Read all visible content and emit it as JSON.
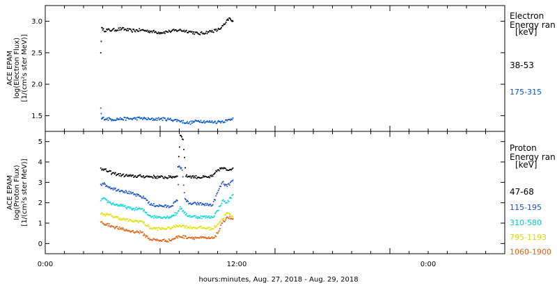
{
  "xaxis": {
    "ticks": [
      "0:00",
      "12:00",
      "0:00"
    ],
    "title": "hours:minutes, Aug. 27, 2018 - Aug. 29, 2018"
  },
  "chart_data": [
    {
      "type": "scatter",
      "panel": "electron",
      "ylabel_lines": [
        "ACE EPAM",
        "log(Electron Flux)",
        "[1/(cm²s ster MeV)]"
      ],
      "ylim": [
        1.25,
        3.25
      ],
      "yticks": [
        "1.5",
        "2.0",
        "2.5",
        "3.0"
      ],
      "xlim_hours": [
        0,
        48
      ],
      "legend_title": [
        "Electron",
        "Energy ran",
        "[keV]"
      ],
      "series": [
        {
          "name": "38-53",
          "color": "#000000",
          "x": [
            5.8,
            5.9,
            6,
            7,
            8,
            9,
            10,
            11,
            12,
            13,
            14,
            15,
            16,
            17,
            18,
            18.4,
            18.8,
            19.2,
            19.5,
            19.6
          ],
          "y": [
            2.5,
            2.9,
            2.86,
            2.86,
            2.88,
            2.85,
            2.86,
            2.84,
            2.82,
            2.84,
            2.86,
            2.84,
            2.8,
            2.83,
            2.86,
            2.9,
            2.96,
            3.05,
            3.0,
            3.0
          ]
        },
        {
          "name": "175-315",
          "color": "#0055cc",
          "x": [
            5.8,
            5.9,
            6,
            7,
            8,
            9,
            10,
            11,
            12,
            13,
            14,
            15,
            16,
            17,
            18,
            19,
            19.6
          ],
          "y": [
            1.62,
            1.45,
            1.46,
            1.44,
            1.45,
            1.45,
            1.46,
            1.44,
            1.45,
            1.44,
            1.42,
            1.38,
            1.42,
            1.4,
            1.4,
            1.42,
            1.46
          ]
        }
      ]
    },
    {
      "type": "scatter",
      "panel": "proton",
      "ylabel_lines": [
        "ACE EPAM",
        "log(Proton Flux)",
        "[1/(cm²s ster MeV)]"
      ],
      "ylim": [
        -0.5,
        5.5
      ],
      "yticks": [
        "0",
        "1",
        "2",
        "3",
        "4",
        "5"
      ],
      "xlim_hours": [
        0,
        48
      ],
      "legend_title": [
        "Proton",
        "Energy ran",
        "[keV]"
      ],
      "series": [
        {
          "name": "47-68",
          "color": "#000000",
          "x": [
            5.8,
            6,
            7,
            8,
            9,
            10,
            11,
            12,
            13,
            13.8,
            14.1,
            14.4,
            14.7,
            15,
            16,
            17,
            17.5,
            18,
            18.5,
            19,
            19.6
          ],
          "y": [
            3.7,
            3.65,
            3.45,
            3.35,
            3.3,
            3.3,
            3.28,
            3.25,
            3.25,
            3.3,
            5.3,
            5.1,
            3.3,
            3.3,
            3.25,
            3.25,
            3.3,
            3.6,
            3.7,
            3.6,
            3.7
          ]
        },
        {
          "name": "115-195",
          "color": "#1a4fc8",
          "x": [
            5.8,
            6,
            7,
            8,
            9,
            10,
            10.5,
            11,
            12,
            13,
            13.8,
            14,
            14.3,
            14.6,
            15,
            16,
            17,
            17.5,
            18,
            18.5,
            19,
            19.6
          ],
          "y": [
            2.9,
            2.95,
            2.7,
            2.6,
            2.45,
            2.3,
            2.2,
            1.9,
            1.85,
            1.8,
            2.1,
            3.8,
            3.6,
            2.2,
            1.95,
            1.95,
            1.9,
            1.9,
            2.5,
            3.0,
            2.8,
            3.1
          ]
        },
        {
          "name": "310-580",
          "color": "#00d8d8",
          "x": [
            5.8,
            6,
            7,
            8,
            9,
            10,
            11,
            11.5,
            12,
            13,
            13.8,
            14.1,
            14.5,
            15,
            16,
            17,
            17.5,
            18,
            18.5,
            19,
            19.6
          ],
          "y": [
            2.1,
            2.2,
            1.95,
            1.85,
            1.7,
            1.7,
            1.35,
            1.3,
            1.3,
            1.3,
            1.5,
            1.8,
            1.5,
            1.35,
            1.3,
            1.3,
            1.3,
            1.6,
            2.1,
            2.0,
            2.4
          ]
        },
        {
          "name": "795-1193",
          "color": "#e0e000",
          "x": [
            5.8,
            6,
            7,
            8,
            9,
            10,
            11,
            12,
            13,
            14,
            15,
            16,
            17,
            17.5,
            18,
            18.5,
            19,
            19.6
          ],
          "y": [
            1.45,
            1.45,
            1.35,
            1.2,
            1.1,
            1.1,
            0.75,
            0.72,
            0.75,
            0.9,
            0.8,
            0.78,
            0.75,
            0.72,
            0.95,
            1.2,
            1.5,
            1.3
          ]
        },
        {
          "name": "1060-1900",
          "color": "#e06010",
          "x": [
            5.8,
            6,
            7,
            8,
            9,
            10,
            11,
            12,
            13,
            14,
            15,
            16,
            17,
            17.5,
            18,
            18.5,
            19,
            19.6
          ],
          "y": [
            1.05,
            1.0,
            0.85,
            0.7,
            0.6,
            0.55,
            0.2,
            0.15,
            0.15,
            0.35,
            0.3,
            0.28,
            0.25,
            0.25,
            0.5,
            1.0,
            1.3,
            1.2
          ]
        }
      ]
    }
  ]
}
